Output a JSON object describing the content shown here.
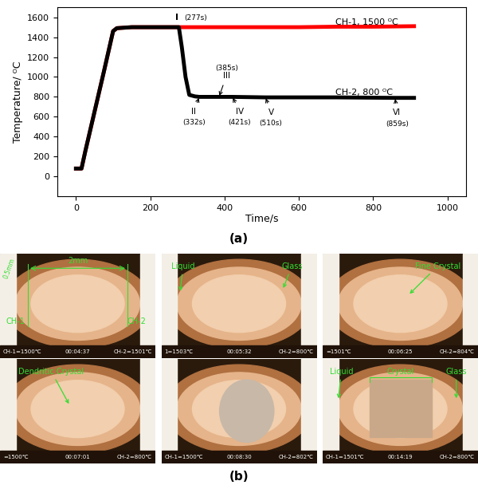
{
  "chart_data": {
    "type": "line",
    "panel_label": "(a)",
    "x_label": "Time/s",
    "y_label": "Temperature/ ᴼC",
    "xlim": [
      -50,
      1050
    ],
    "xticks": [
      0,
      200,
      400,
      600,
      800,
      1000
    ],
    "ylim": [
      -200,
      1700
    ],
    "yticks": [
      0,
      200,
      400,
      600,
      800,
      1000,
      1200,
      1400,
      1600
    ],
    "grid": false,
    "series": [
      {
        "name": "CH-1, 1500 ᴼC",
        "color": "#ff0000",
        "x": [
          0,
          15,
          25,
          50,
          75,
          100,
          110,
          150,
          200,
          277,
          300,
          400,
          500,
          600,
          700,
          800,
          910
        ],
        "values": [
          80,
          80,
          250,
          650,
          1050,
          1460,
          1490,
          1500,
          1500,
          1500,
          1500,
          1500,
          1500,
          1500,
          1505,
          1505,
          1510
        ]
      },
      {
        "name": "CH-2, 800 ᴼC",
        "color": "#000000",
        "x": [
          0,
          15,
          25,
          50,
          75,
          100,
          110,
          150,
          200,
          277,
          285,
          295,
          305,
          320,
          332,
          385,
          421,
          510,
          600,
          700,
          859,
          910
        ],
        "values": [
          80,
          80,
          250,
          650,
          1050,
          1460,
          1490,
          1500,
          1500,
          1500,
          1300,
          1000,
          820,
          805,
          800,
          800,
          800,
          795,
          795,
          795,
          790,
          790
        ]
      }
    ],
    "annotations": [
      {
        "label": "I",
        "time": "(277s)",
        "x": 277,
        "y": 1500
      },
      {
        "label": "II",
        "time": "(332s)",
        "x": 332,
        "y": 800
      },
      {
        "label": "III",
        "time": "(385s)",
        "x": 385,
        "y": 800
      },
      {
        "label": "IV",
        "time": "(421s)",
        "x": 421,
        "y": 800
      },
      {
        "label": "V",
        "time": "(510s)",
        "x": 510,
        "y": 795
      },
      {
        "label": "VI",
        "time": "(859s)",
        "x": 859,
        "y": 790
      }
    ]
  },
  "figure_b": {
    "panel_label": "(b)",
    "panels": [
      {
        "labels": [
          "0.5mm",
          "2mm",
          "CH-1",
          "CH-2"
        ],
        "status": [
          "CH-1=1500℃",
          "00:04:37",
          "CH-2=1501℃"
        ]
      },
      {
        "labels": [
          "Liquid",
          "Glass"
        ],
        "status": [
          "1=1503℃",
          "00:05:32",
          "CH-2=800℃"
        ]
      },
      {
        "labels": [
          "Fine Crystal"
        ],
        "status": [
          "=1501℃",
          "00:06:25",
          "CH-2=804℃"
        ]
      },
      {
        "labels": [
          "Dendritic Crystal"
        ],
        "status": [
          "=1500℃",
          "00:07:01",
          "CH-2=800℃"
        ]
      },
      {
        "labels": [],
        "status": [
          "CH-1=1500℃",
          "00:08:30",
          "CH-2=802℃"
        ]
      },
      {
        "labels": [
          "Liquid",
          "Crystal",
          "Glass"
        ],
        "status": [
          "CH-1=1501℃",
          "00:14:19",
          "CH-2=800℃"
        ]
      }
    ]
  }
}
